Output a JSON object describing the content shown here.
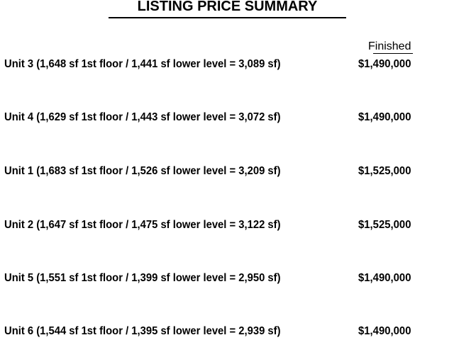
{
  "title": "LISTING PRICE SUMMARY",
  "column_header": "Finished",
  "rows": [
    {
      "label": "Unit 3 (1,648 sf 1st floor / 1,441 sf lower level = 3,089 sf)",
      "price": "$1,490,000"
    },
    {
      "label": "Unit 4 (1,629 sf 1st floor / 1,443 sf lower level = 3,072 sf)",
      "price": "$1,490,000"
    },
    {
      "label": "Unit 1 (1,683 sf 1st floor / 1,526 sf lower level = 3,209 sf)",
      "price": "$1,525,000"
    },
    {
      "label": "Unit 2 (1,647 sf 1st floor / 1,475 sf lower level = 3,122 sf)",
      "price": "$1,525,000"
    },
    {
      "label": "Unit 5 (1,551 sf 1st floor / 1,399 sf lower level = 2,950 sf)",
      "price": "$1,490,000"
    },
    {
      "label": "Unit 6 (1,544 sf 1st floor / 1,395 sf lower level = 2,939 sf)",
      "price": "$1,490,000"
    }
  ]
}
